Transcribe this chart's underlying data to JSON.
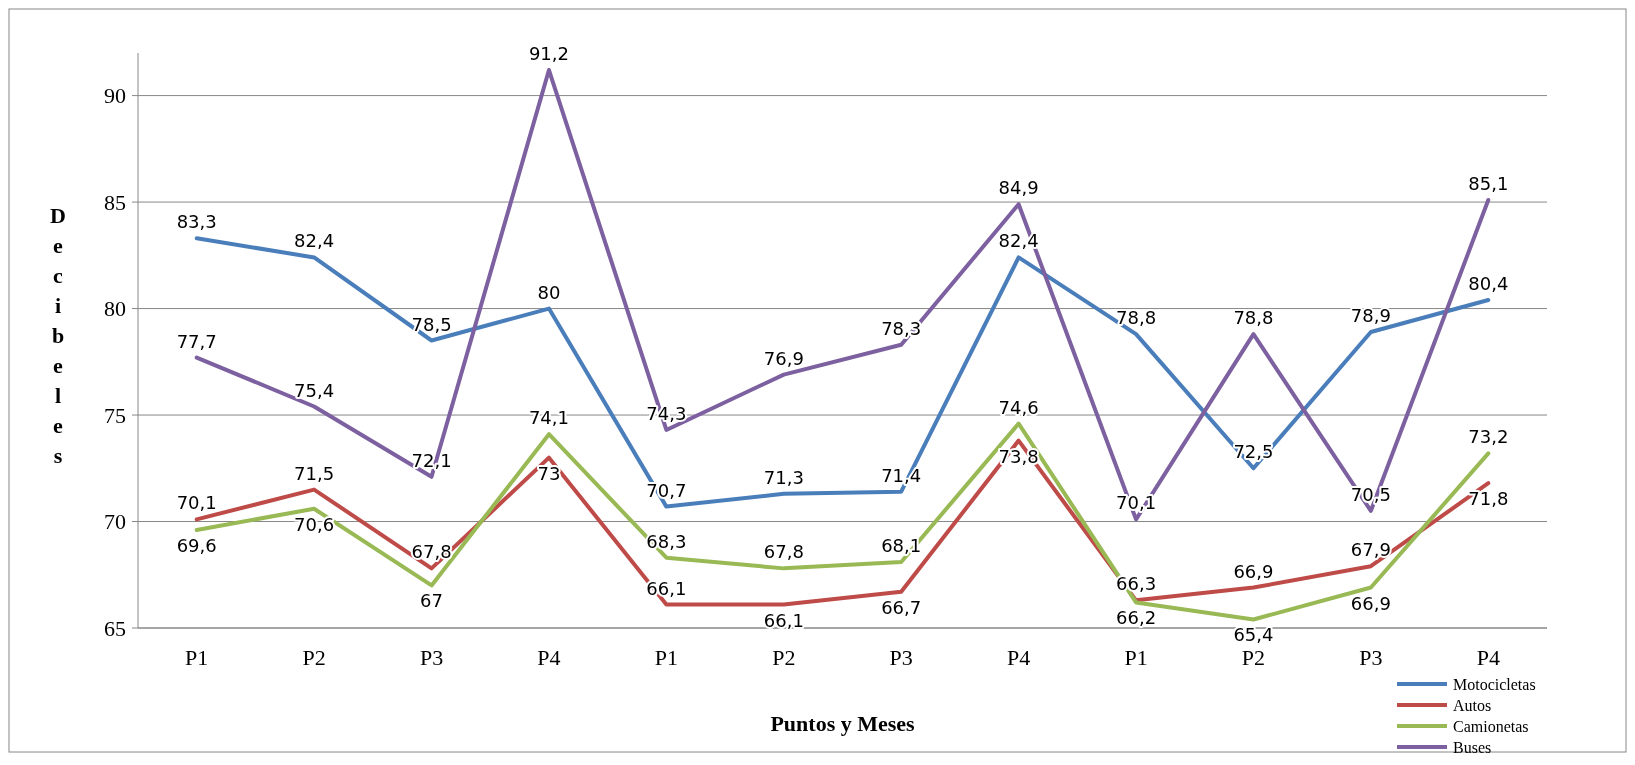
{
  "chart_data": {
    "type": "line",
    "xlabel": "Puntos y Meses",
    "ylabel": "Decibeles",
    "categories": [
      "P1",
      "P2",
      "P3",
      "P4",
      "P1",
      "P2",
      "P3",
      "P4",
      "P1",
      "P2",
      "P3",
      "P4"
    ],
    "series": [
      {
        "name": "Motocicletas",
        "color": "#4a7ebb",
        "values": [
          83.3,
          82.4,
          78.5,
          80,
          70.7,
          71.3,
          71.4,
          82.4,
          78.8,
          72.5,
          78.9,
          80.4
        ],
        "value_labels": [
          "83,3",
          "82,4",
          "78,5",
          "80",
          "70,7",
          "71,3",
          "71,4",
          "82,4",
          "78,8",
          "72,5",
          "78,9",
          "80,4"
        ]
      },
      {
        "name": "Autos",
        "color": "#be4b48",
        "values": [
          70.1,
          71.5,
          67.8,
          73,
          66.1,
          66.1,
          66.7,
          73.8,
          66.3,
          66.9,
          67.9,
          71.8
        ],
        "value_labels": [
          "70,1",
          "71,5",
          "67,8",
          "73",
          "66,1",
          "66,1",
          "66,7",
          "73,8",
          "66,3",
          "66,9",
          "67,9",
          "71,8"
        ]
      },
      {
        "name": "Camionetas",
        "color": "#98b954",
        "values": [
          69.6,
          70.6,
          67,
          74.1,
          68.3,
          67.8,
          68.1,
          74.6,
          66.2,
          65.4,
          66.9,
          73.2
        ],
        "value_labels": [
          "69,6",
          "70,6",
          "67",
          "74,1",
          "68,3",
          "67,8",
          "68,1",
          "74,6",
          "66,2",
          "65,4",
          "66,9",
          "73,2"
        ]
      },
      {
        "name": "Buses",
        "color": "#7d60a0",
        "values": [
          77.7,
          75.4,
          72.1,
          91.2,
          74.3,
          76.9,
          78.3,
          84.9,
          70.1,
          78.8,
          70.5,
          85.1
        ],
        "value_labels": [
          "77,7",
          "75,4",
          "72,1",
          "91,2",
          "74,3",
          "76,9",
          "78,3",
          "84,9",
          "70,1",
          "78,8",
          "70,5",
          "85,1"
        ]
      }
    ],
    "ylim": [
      65,
      92
    ],
    "yticks": [
      65,
      70,
      75,
      80,
      85,
      90
    ],
    "grid": "y",
    "legend": "bottom right",
    "marker": "none",
    "line_style": "solid"
  }
}
